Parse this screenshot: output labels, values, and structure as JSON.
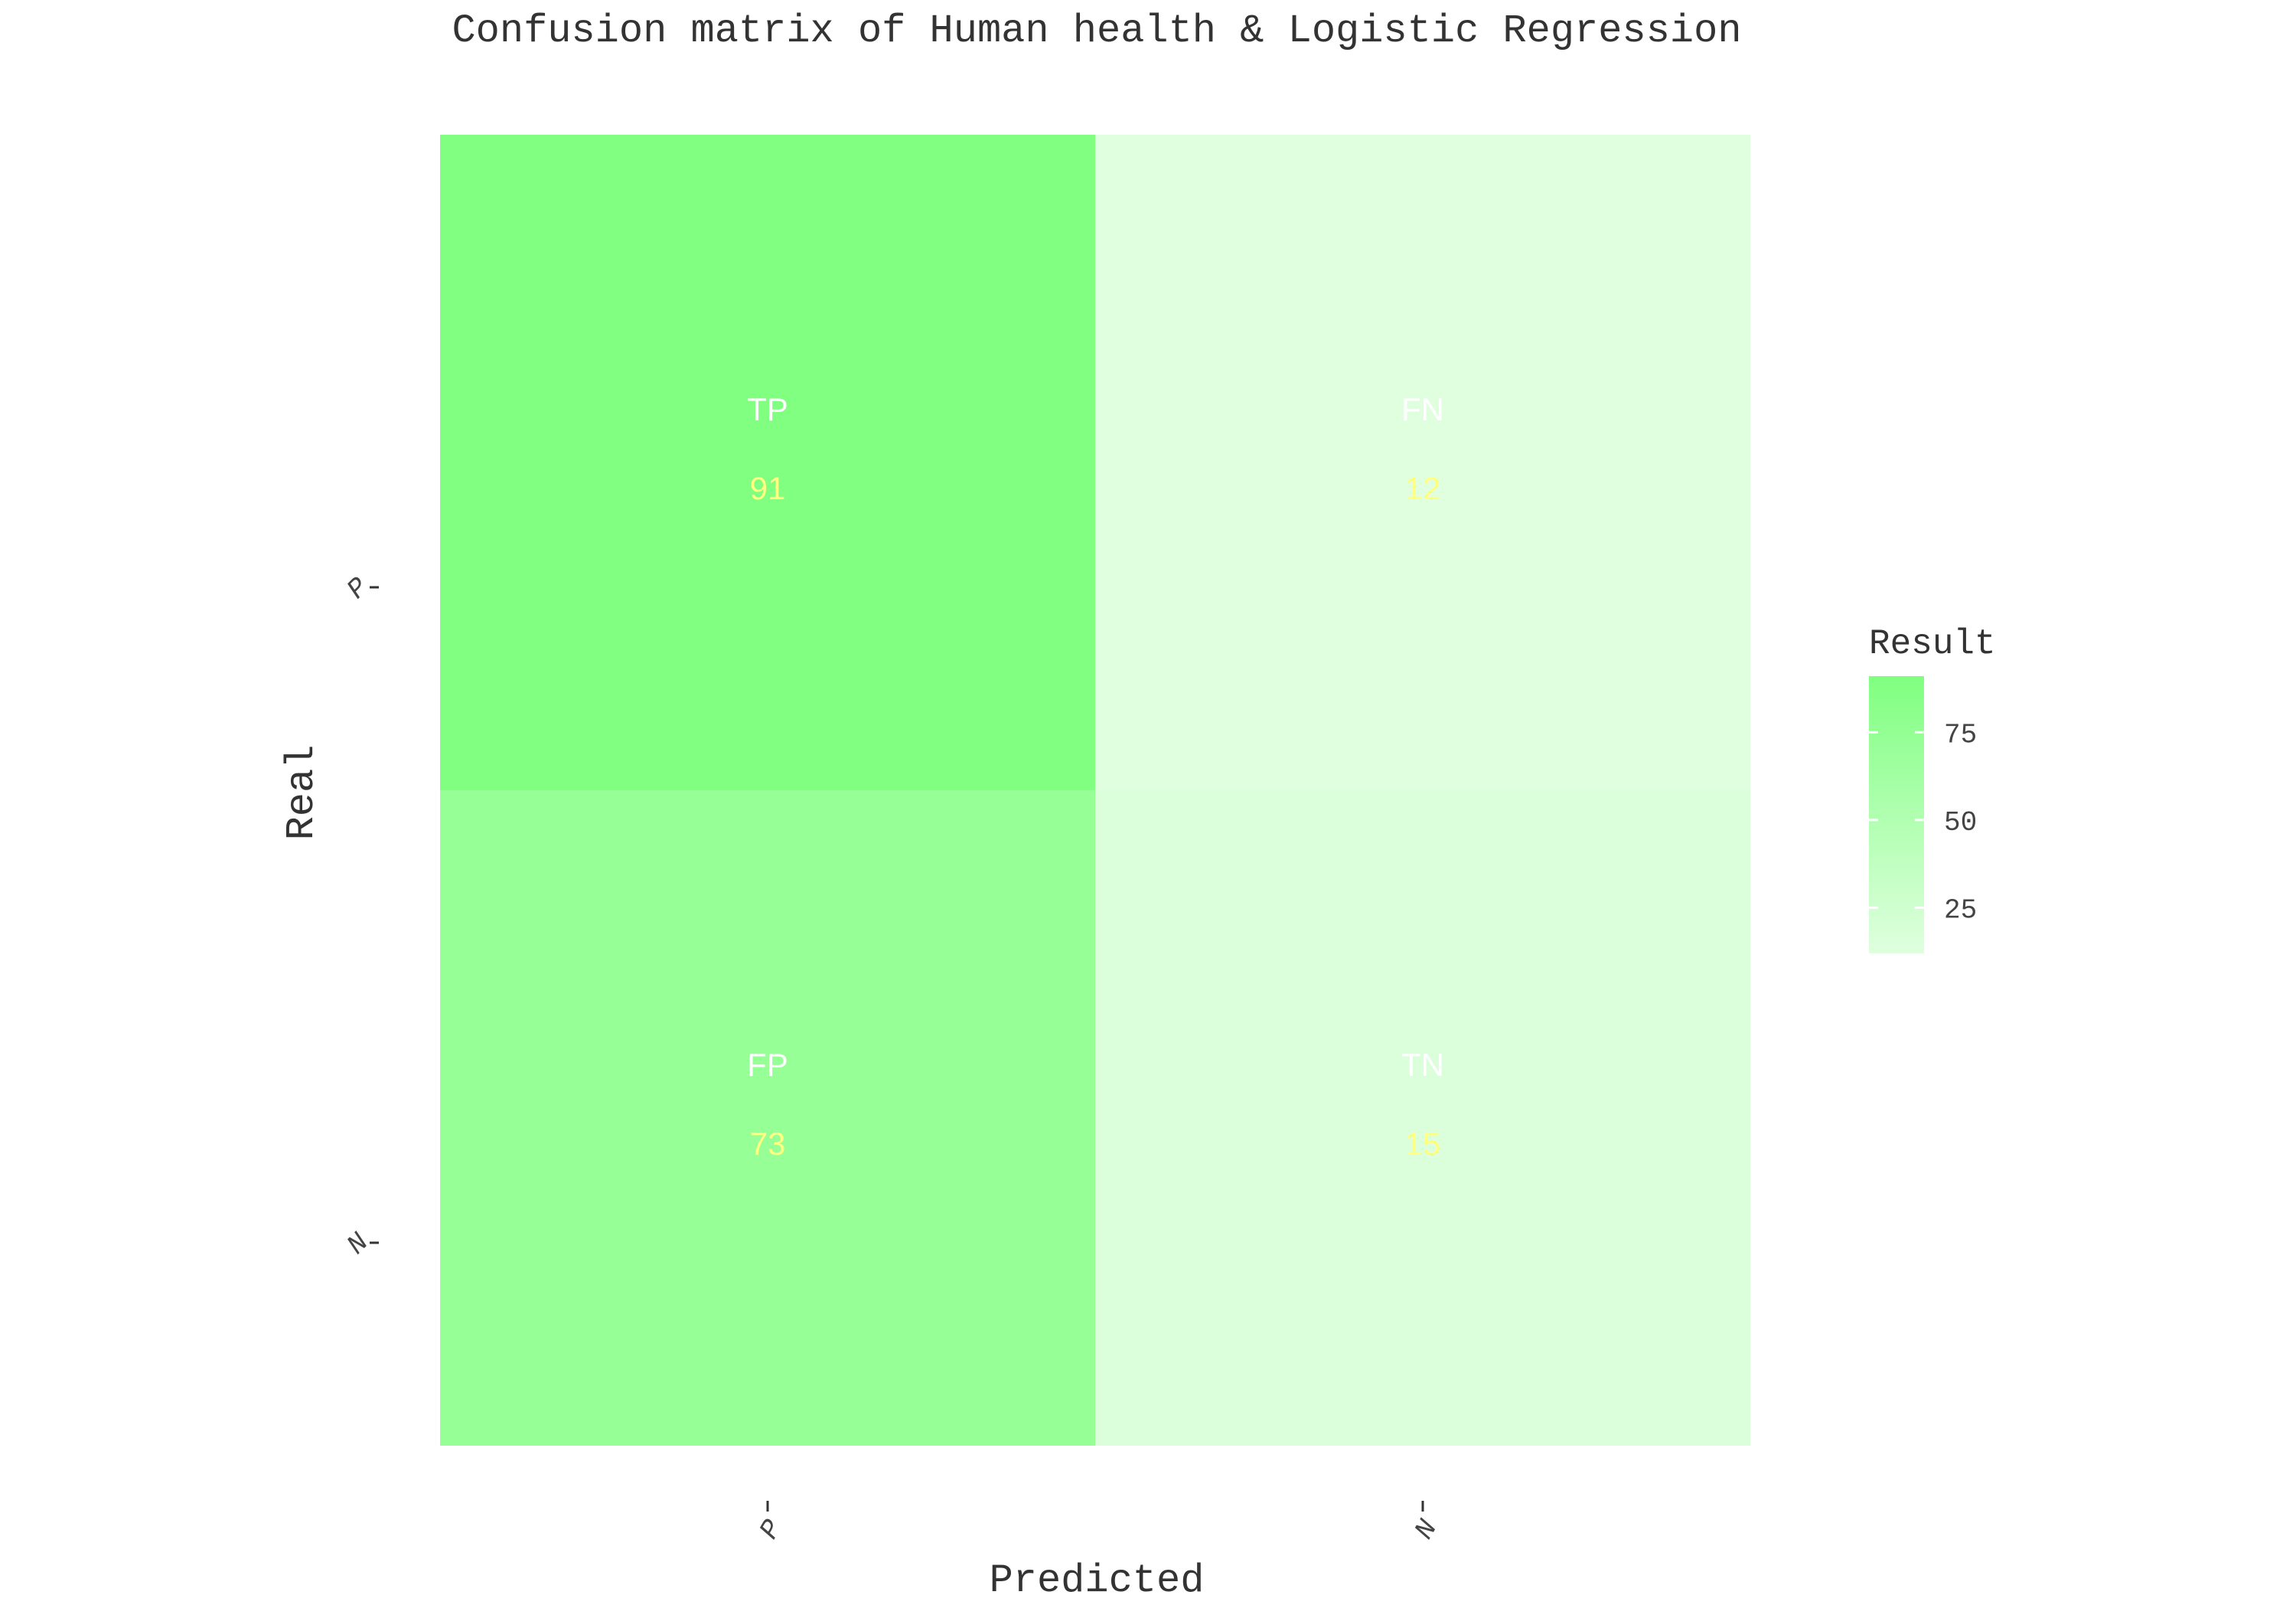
{
  "chart_data": {
    "type": "heatmap",
    "title": "Confusion matrix of Human health & Logistic Regression",
    "xlabel": "Predicted",
    "ylabel": "Real",
    "x_categories": [
      "P",
      "N"
    ],
    "y_categories": [
      "P",
      "N"
    ],
    "cells": [
      {
        "real": "P",
        "predicted": "P",
        "label": "TP",
        "value": 91
      },
      {
        "real": "P",
        "predicted": "N",
        "label": "FN",
        "value": 12
      },
      {
        "real": "N",
        "predicted": "P",
        "label": "FP",
        "value": 73
      },
      {
        "real": "N",
        "predicted": "N",
        "label": "TN",
        "value": 15
      }
    ],
    "legend": {
      "title": "Result",
      "placement": "right",
      "ticks": [
        25,
        50,
        75
      ],
      "range": [
        12,
        91
      ],
      "low_color": "#dfffdf",
      "high_color": "#80ff80"
    },
    "cell_label_color": "#ffffff",
    "cell_value_color": "#ffff80",
    "grid": false
  }
}
